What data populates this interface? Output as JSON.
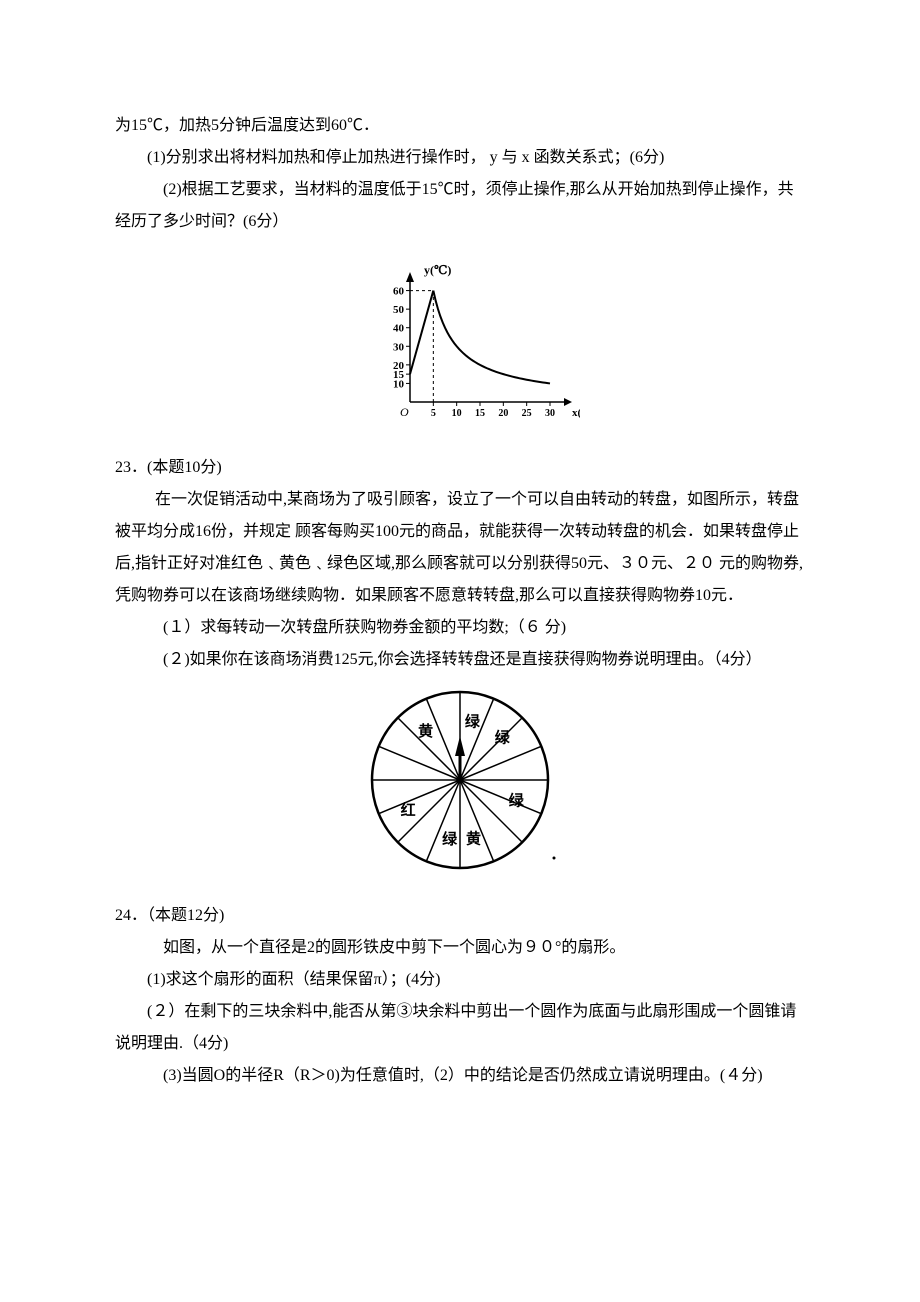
{
  "q22": {
    "cont_line": "为15℃，加热5分钟后温度达到60℃．",
    "p1": "(1)分别求出将材料加热和停止加热进行操作时， y 与 x 函数关系式；(6分)",
    "p2": "(2)根据工艺要求，当材料的温度低于15℃时，须停止操作,那么从开始加热到停止操作，共经历了多少时间？(6分）",
    "chart": {
      "y_label": "y(℃)",
      "x_label": "x(min)",
      "origin": "O",
      "y_ticks": [
        "60",
        "50",
        "40",
        "30",
        "20",
        "15",
        "10"
      ],
      "x_ticks": [
        "5",
        "10",
        "15",
        "20",
        "25",
        "30"
      ],
      "axis_color": "#000000",
      "curve_color": "#000000"
    }
  },
  "q23": {
    "head": "23．(本题10分)",
    "body1": "在一次促销活动中,某商场为了吸引顾客，设立了一个可以自由转动的转盘，如图所示，转盘被平均分成16份，并规定  顾客每购买100元的商品，就能获得一次转动转盘的机会．如果转盘停止后,指针正好对准红色﹑黄色﹑绿色区域,那么顾客就可以分别获得50元、３０元、２０ 元的购物券,凭购物券可以在该商场继续购物．如果顾客不愿意转转盘,那么可以直接获得购物券10元．",
    "p1": "(１）求每转动一次转盘所获购物券金额的平均数;（６ 分)",
    "p2": "(２)如果你在该商场消费125元,你会选择转转盘还是直接获得购物券说明理由。（4分）",
    "wheel": {
      "sectors": 16,
      "labels": [
        {
          "text": "绿",
          "angle": 78
        },
        {
          "text": "绿",
          "angle": 45
        },
        {
          "text": "黄",
          "angle": 125
        },
        {
          "text": "绿",
          "angle": -20
        },
        {
          "text": "红",
          "angle": 210
        },
        {
          "text": "绿",
          "angle": 260
        },
        {
          "text": "黄",
          "angle": 283
        }
      ],
      "outline_color": "#000000",
      "fill_color": "#ffffff"
    }
  },
  "q24": {
    "head": "24．（本题12分)",
    "body1": "如图，从一个直径是2的圆形铁皮中剪下一个圆心为９０°的扇形。",
    "p1": "(1)求这个扇形的面积（结果保留π）；(4分)",
    "p2": "(２）在剩下的三块余料中,能否从第③块余料中剪出一个圆作为底面与此扇形围成一个圆锥请说明理由.（4分)",
    "p3": "(3)当圆O的半径R（R＞0)为任意值时,（2）中的结论是否仍然成立请说明理由。(４分)"
  }
}
